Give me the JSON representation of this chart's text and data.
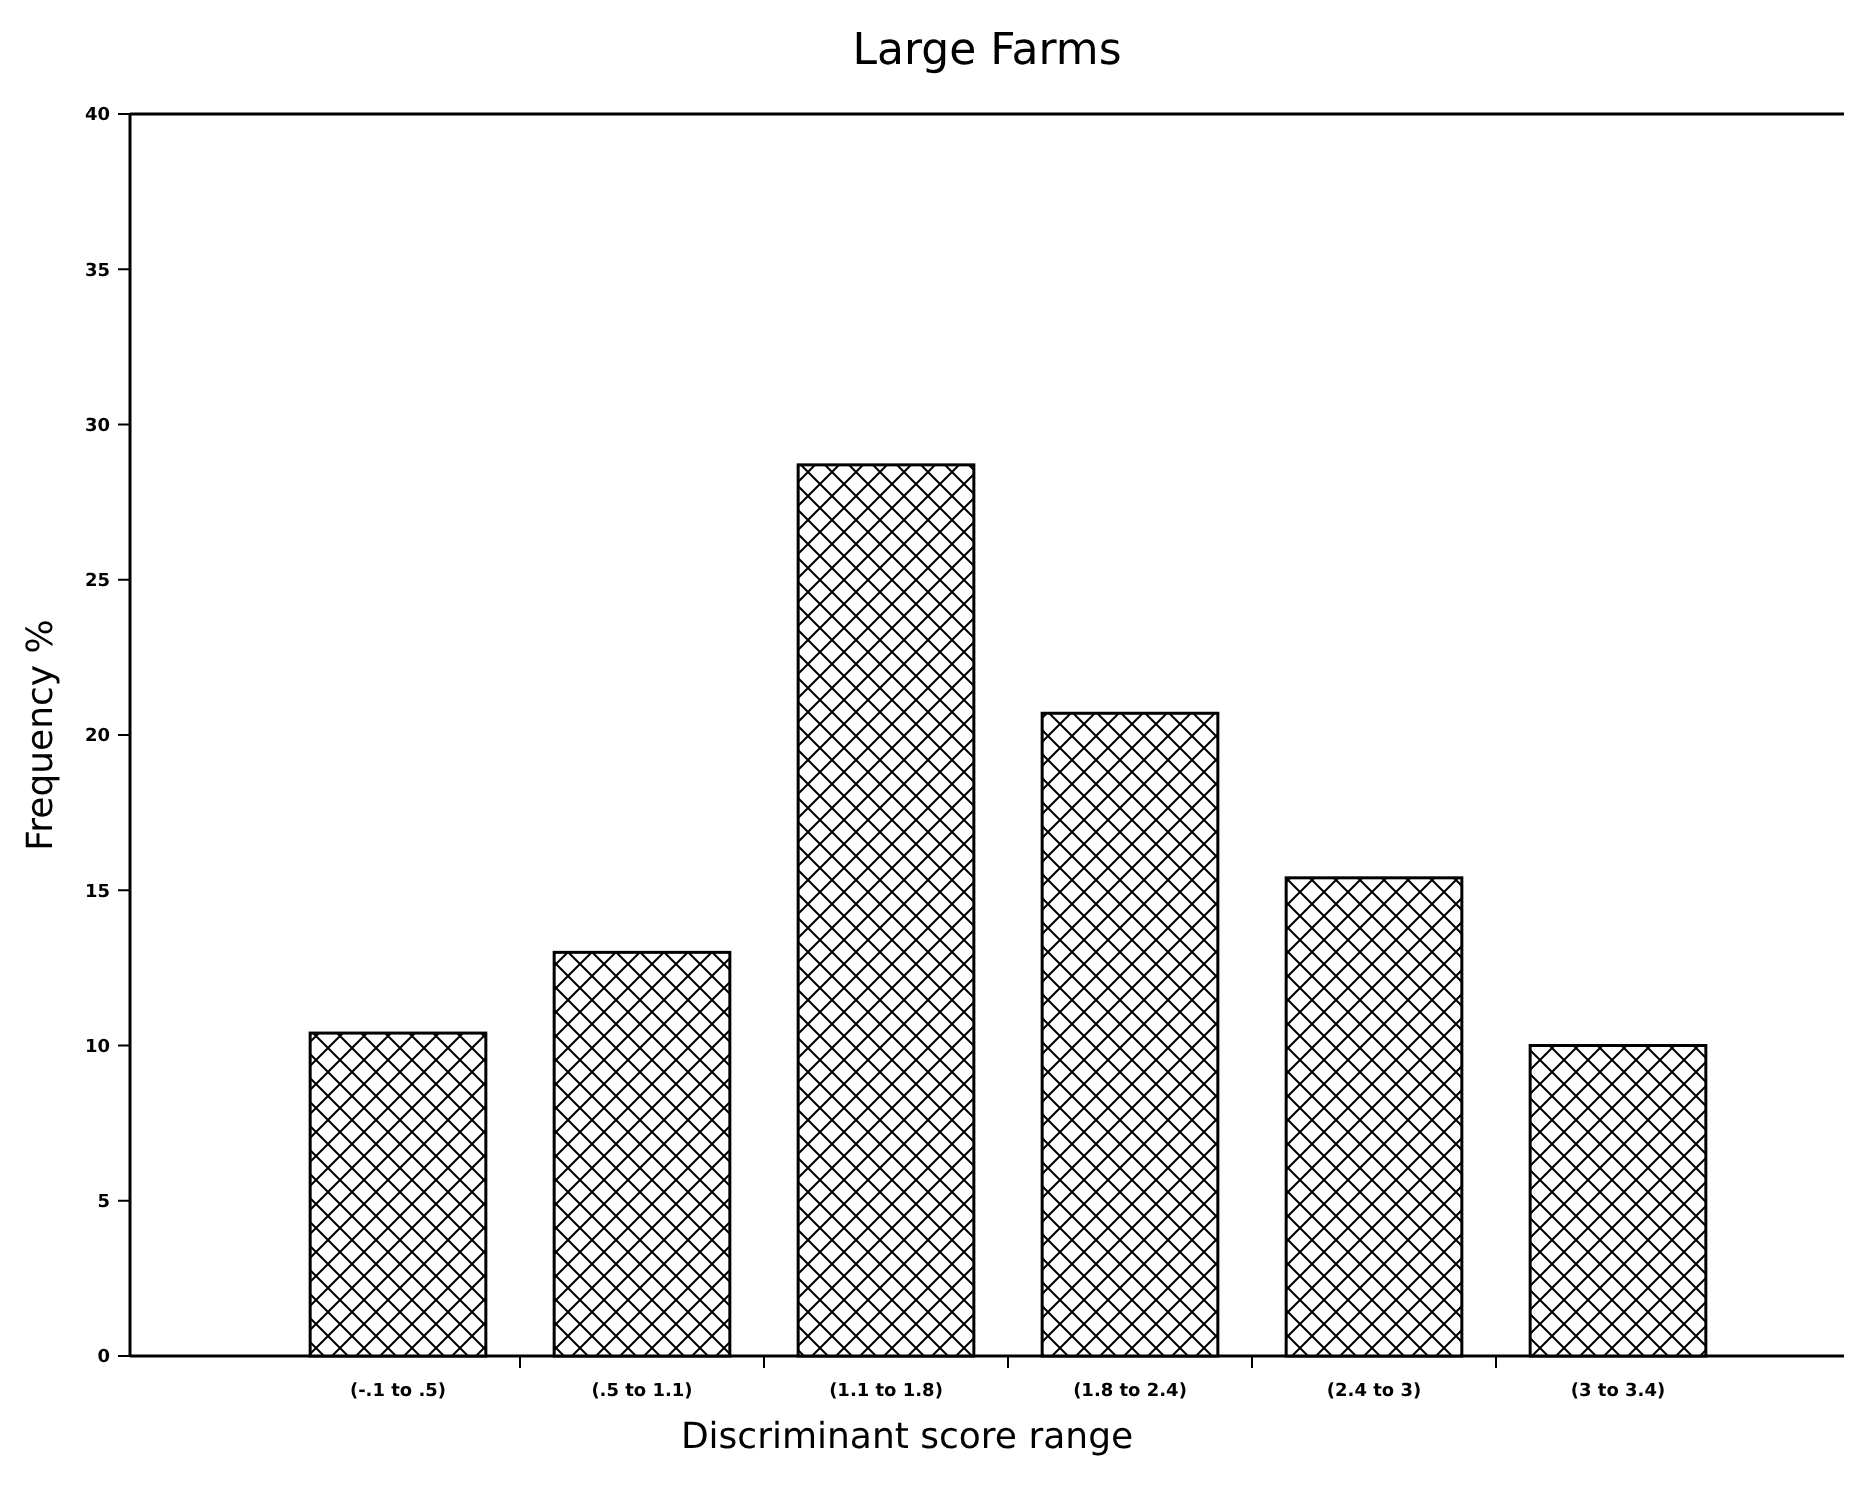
{
  "chart_data": {
    "type": "bar",
    "title": "Large Farms",
    "xlabel": "Discriminant score range",
    "ylabel": "Frequency %",
    "categories": [
      "(-.1 to .5)",
      "(.5 to 1.1)",
      "(1.1 to 1.8)",
      "(1.8 to 2.4)",
      "(2.4 to 3)",
      "(3 to 3.4)"
    ],
    "values": [
      10.4,
      13.0,
      28.7,
      20.7,
      15.4,
      10.0
    ],
    "color": "#000000",
    "ylim": [
      0,
      40
    ],
    "yticks": [
      0,
      5,
      10,
      15,
      20,
      25,
      30,
      35,
      40
    ],
    "grid": false
  }
}
